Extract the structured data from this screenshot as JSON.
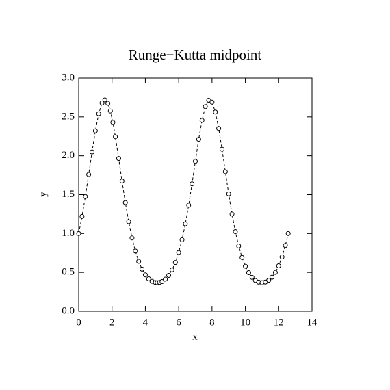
{
  "chart_data": {
    "type": "scatter",
    "title": "Runge−Kutta midpoint",
    "x_label": "x",
    "y_label": "y",
    "x": [
      0,
      0.2,
      0.4,
      0.6,
      0.8,
      1.0,
      1.2,
      1.4,
      1.57,
      1.75,
      1.9,
      2.05,
      2.2,
      2.4,
      2.6,
      2.8,
      3.0,
      3.2,
      3.4,
      3.6,
      3.8,
      4.0,
      4.2,
      4.4,
      4.6,
      4.71,
      4.85,
      5.0,
      5.2,
      5.4,
      5.6,
      5.8,
      6.0,
      6.2,
      6.4,
      6.6,
      6.8,
      7.0,
      7.2,
      7.4,
      7.6,
      7.8,
      8.0,
      8.2,
      8.4,
      8.6,
      8.8,
      9.0,
      9.2,
      9.4,
      9.6,
      9.8,
      10.0,
      10.2,
      10.4,
      10.6,
      10.8,
      11.0,
      11.2,
      11.4,
      11.6,
      11.8,
      12.0,
      12.2,
      12.4,
      12.57
    ],
    "values": [
      1.0,
      1.22,
      1.476,
      1.759,
      2.049,
      2.32,
      2.54,
      2.679,
      2.718,
      2.675,
      2.576,
      2.429,
      2.245,
      1.965,
      1.675,
      1.398,
      1.152,
      0.943,
      0.775,
      0.642,
      0.542,
      0.469,
      0.418,
      0.386,
      0.37,
      0.368,
      0.372,
      0.383,
      0.413,
      0.462,
      0.532,
      0.628,
      0.756,
      0.92,
      1.124,
      1.365,
      1.639,
      1.929,
      2.211,
      2.456,
      2.632,
      2.714,
      2.69,
      2.562,
      2.351,
      2.084,
      1.795,
      1.51,
      1.25,
      1.025,
      0.84,
      0.693,
      0.58,
      0.497,
      0.437,
      0.397,
      0.375,
      0.368,
      0.376,
      0.399,
      0.439,
      0.5,
      0.585,
      0.699,
      0.847,
      1.0
    ],
    "color": "#000000",
    "linestyle": "dashed",
    "marker": "circle",
    "xlim": [
      0,
      14
    ],
    "xticks": [
      0,
      2,
      4,
      6,
      8,
      10,
      12,
      14
    ],
    "ylim": [
      0,
      3.0
    ],
    "yticks": [
      {
        "value": 0,
        "label": "0.0"
      },
      {
        "value": 0.5,
        "label": "0.5"
      },
      {
        "value": 1,
        "label": "1.0"
      },
      {
        "value": 1.5,
        "label": "1.5"
      },
      {
        "value": 2,
        "label": "2.0"
      },
      {
        "value": 2.5,
        "label": "2.5"
      },
      {
        "value": 3,
        "label": "3.0"
      }
    ]
  }
}
